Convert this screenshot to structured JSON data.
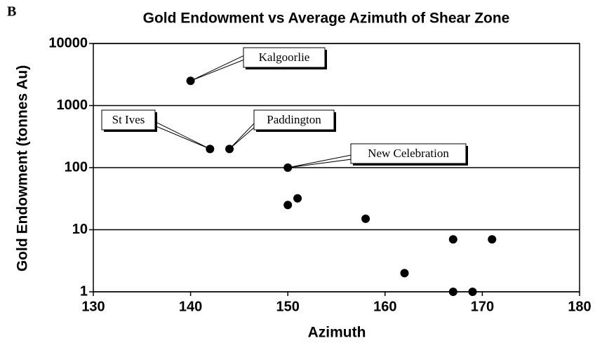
{
  "chart_data": {
    "type": "scatter",
    "panel": "B",
    "title": "Gold Endowment vs Average Azimuth of Shear Zone",
    "xlabel": "Azimuth",
    "ylabel": "Gold Endowment (tonnes Au)",
    "x": [
      140,
      142,
      144,
      150,
      150,
      151,
      158,
      162,
      167,
      167,
      169,
      171
    ],
    "values": [
      2500,
      200,
      200,
      100,
      25,
      32,
      15,
      2,
      7,
      1,
      1,
      7
    ],
    "color": "#000000",
    "xlim": [
      130,
      180
    ],
    "xticks": [
      130,
      140,
      150,
      160,
      170,
      180
    ],
    "ylim": [
      1,
      10000
    ],
    "yticks": [
      1,
      10,
      100,
      1000,
      10000
    ],
    "log_y": true,
    "grid": true,
    "annotations": [
      "Kalgoorlie",
      "St Ives",
      "Paddington",
      "New Celebration"
    ]
  }
}
